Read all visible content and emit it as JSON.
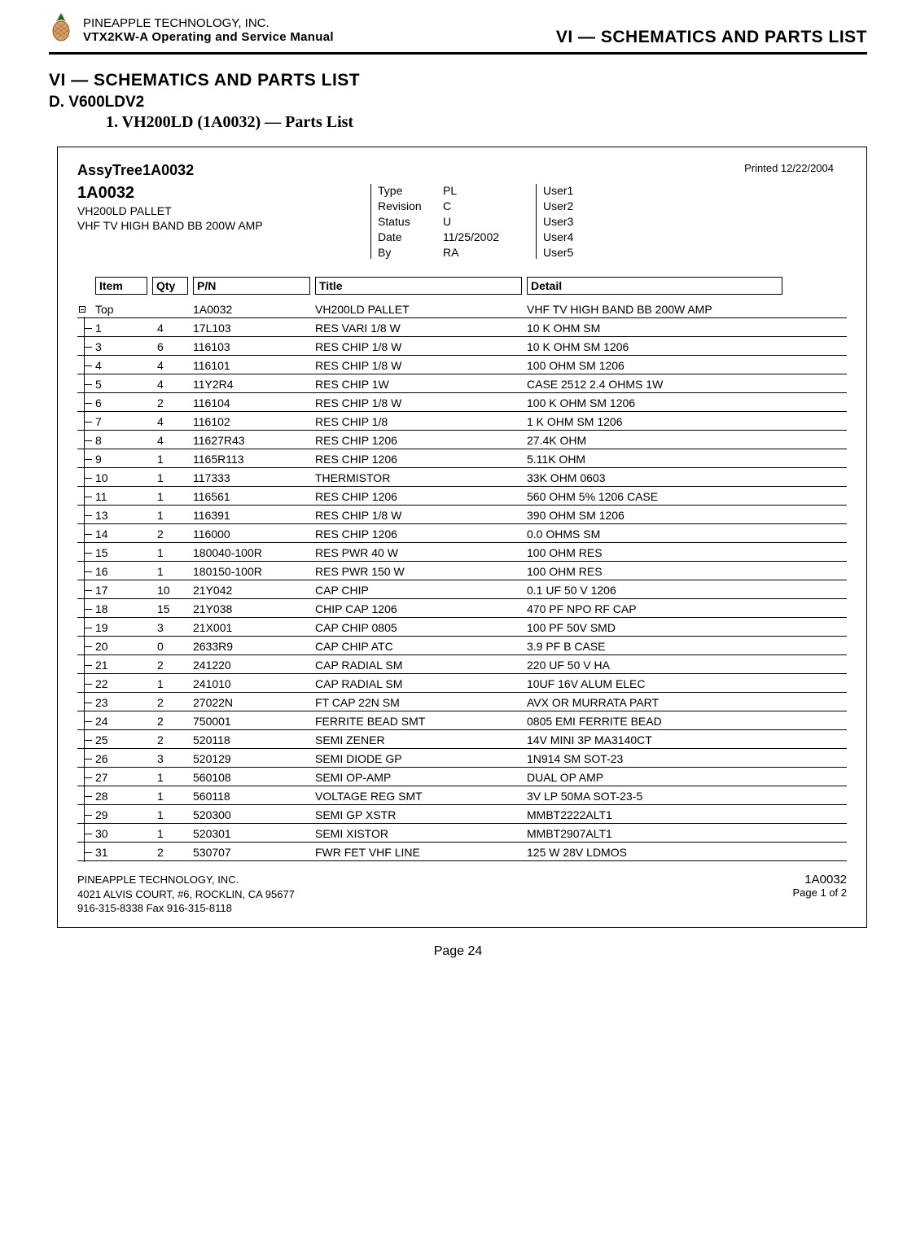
{
  "header": {
    "company": "PINEAPPLE TECHNOLOGY, INC.",
    "manual": "VTX2KW-A Operating and Service Manual",
    "section_right": "VI — SCHEMATICS AND PARTS LIST"
  },
  "titles": {
    "section": "VI — SCHEMATICS AND PARTS LIST",
    "subsection": "D. V600LDV2",
    "parts_heading": "1. VH200LD (1A0032) — Parts List"
  },
  "assy": {
    "title": "AssyTree1A0032",
    "printed": "Printed 12/22/2004",
    "code": "1A0032",
    "pallet": "VH200LD PALLET",
    "desc": "VHF TV  HIGH BAND BB 200W AMP"
  },
  "meta": {
    "labels": {
      "type": "Type",
      "revision": "Revision",
      "status": "Status",
      "date": "Date",
      "by": "By"
    },
    "values": {
      "type": "PL",
      "revision": "C",
      "status": "U",
      "date": "11/25/2002",
      "by": "RA"
    }
  },
  "users": {
    "u1": "User1",
    "u2": "User2",
    "u3": "User3",
    "u4": "User4",
    "u5": "User5"
  },
  "columns": {
    "item": "Item",
    "qty": "Qty",
    "pn": "P/N",
    "title": "Title",
    "detail": "Detail"
  },
  "top_row": {
    "item": "Top",
    "qty": "",
    "pn": "1A0032",
    "title": "VH200LD PALLET",
    "detail": "VHF TV  HIGH BAND BB 200W AMP"
  },
  "rows": [
    {
      "item": "1",
      "qty": "4",
      "pn": "17L103",
      "title": "RES VARI 1/8 W",
      "detail": "10 K OHM SM"
    },
    {
      "item": "3",
      "qty": "6",
      "pn": "116103",
      "title": "RES CHIP 1/8 W",
      "detail": "10 K OHM SM 1206"
    },
    {
      "item": "4",
      "qty": "4",
      "pn": "116101",
      "title": "RES CHIP 1/8 W",
      "detail": "100 OHM SM 1206"
    },
    {
      "item": "5",
      "qty": "4",
      "pn": "11Y2R4",
      "title": "RES CHIP 1W",
      "detail": "CASE 2512  2.4 OHMS 1W"
    },
    {
      "item": "6",
      "qty": "2",
      "pn": "116104",
      "title": "RES CHIP 1/8 W",
      "detail": "100 K OHM SM 1206"
    },
    {
      "item": "7",
      "qty": "4",
      "pn": "116102",
      "title": "RES CHIP 1/8",
      "detail": "1 K OHM SM 1206"
    },
    {
      "item": "8",
      "qty": "4",
      "pn": "11627R43",
      "title": "RES CHIP 1206",
      "detail": "27.4K OHM"
    },
    {
      "item": "9",
      "qty": "1",
      "pn": "1165R113",
      "title": "RES CHIP 1206",
      "detail": "5.11K OHM"
    },
    {
      "item": "10",
      "qty": "1",
      "pn": "117333",
      "title": "THERMISTOR",
      "detail": "33K OHM 0603"
    },
    {
      "item": "11",
      "qty": "1",
      "pn": "116561",
      "title": "RES CHIP 1206",
      "detail": "560 OHM 5% 1206 CASE"
    },
    {
      "item": "13",
      "qty": "1",
      "pn": "116391",
      "title": "RES CHIP 1/8 W",
      "detail": "390 OHM SM 1206"
    },
    {
      "item": "14",
      "qty": "2",
      "pn": "116000",
      "title": "RES CHIP 1206",
      "detail": "0.0 OHMS SM"
    },
    {
      "item": "15",
      "qty": "1",
      "pn": "180040-100R",
      "title": "RES PWR 40 W",
      "detail": "100 OHM RES"
    },
    {
      "item": "16",
      "qty": "1",
      "pn": "180150-100R",
      "title": "RES PWR 150 W",
      "detail": "100 OHM RES"
    },
    {
      "item": "17",
      "qty": "10",
      "pn": "21Y042",
      "title": "CAP CHIP",
      "detail": "0.1 UF 50 V 1206"
    },
    {
      "item": "18",
      "qty": "15",
      "pn": "21Y038",
      "title": "CHIP CAP 1206",
      "detail": "470 PF NPO RF CAP"
    },
    {
      "item": "19",
      "qty": "3",
      "pn": "21X001",
      "title": "CAP CHIP 0805",
      "detail": "100 PF 50V SMD"
    },
    {
      "item": "20",
      "qty": "0",
      "pn": "2633R9",
      "title": "CAP CHIP ATC",
      "detail": "3.9 PF B CASE"
    },
    {
      "item": "21",
      "qty": "2",
      "pn": "241220",
      "title": "CAP RADIAL SM",
      "detail": "220 UF 50 V HA"
    },
    {
      "item": "22",
      "qty": "1",
      "pn": "241010",
      "title": "CAP RADIAL SM",
      "detail": "10UF 16V ALUM ELEC"
    },
    {
      "item": "23",
      "qty": "2",
      "pn": "27022N",
      "title": "FT CAP 22N SM",
      "detail": "AVX OR MURRATA PART"
    },
    {
      "item": "24",
      "qty": "2",
      "pn": "750001",
      "title": "FERRITE BEAD SMT",
      "detail": "0805 EMI FERRITE BEAD"
    },
    {
      "item": "25",
      "qty": "2",
      "pn": "520118",
      "title": "SEMI ZENER",
      "detail": "14V MINI 3P MA3140CT"
    },
    {
      "item": "26",
      "qty": "3",
      "pn": "520129",
      "title": "SEMI DIODE GP",
      "detail": "1N914 SM SOT-23"
    },
    {
      "item": "27",
      "qty": "1",
      "pn": "560108",
      "title": "SEMI OP-AMP",
      "detail": "DUAL OP AMP"
    },
    {
      "item": "28",
      "qty": "1",
      "pn": "560118",
      "title": "VOLTAGE REG SMT",
      "detail": "3V LP 50MA SOT-23-5"
    },
    {
      "item": "29",
      "qty": "1",
      "pn": "520300",
      "title": "SEMI GP XSTR",
      "detail": "MMBT2222ALT1"
    },
    {
      "item": "30",
      "qty": "1",
      "pn": "520301",
      "title": "SEMI XISTOR",
      "detail": "MMBT2907ALT1"
    },
    {
      "item": "31",
      "qty": "2",
      "pn": "530707",
      "title": "FWR FET VHF LINE",
      "detail": "125 W 28V LDMOS"
    }
  ],
  "footer": {
    "company": "PINEAPPLE TECHNOLOGY, INC.",
    "address": "4021 ALVIS COURT, #6, ROCKLIN, CA 95677",
    "phone": "916-315-8338   Fax 916-315-8118",
    "code": "1A0032",
    "page": "Page 1 of   2"
  },
  "page_number": "Page 24",
  "logo_colors": {
    "leaf": "#2e7d32",
    "leaf_dark": "#1b5e20",
    "body": "#d9a066",
    "stroke": "#8b5a2b",
    "cell": "#b07a45"
  }
}
